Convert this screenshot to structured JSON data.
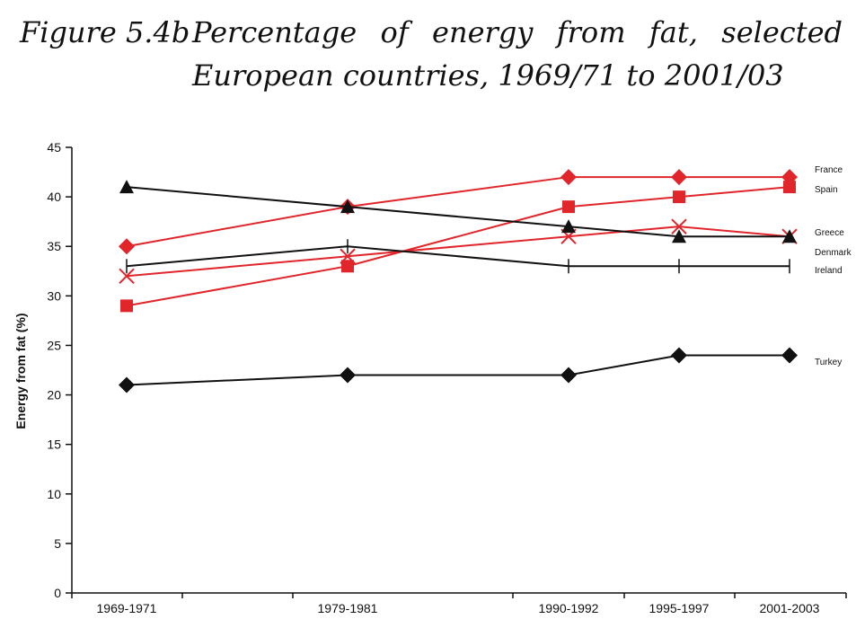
{
  "chart_data": {
    "type": "line",
    "title_prefix": "Figure 5.4b",
    "title": "Percentage of energy from fat, selected European countries, 1969/71 to 2001/03",
    "xlabel": "",
    "ylabel": "Energy from fat (%)",
    "ylim": [
      0,
      45
    ],
    "yticks": [
      0,
      5,
      10,
      15,
      20,
      25,
      30,
      35,
      40,
      45
    ],
    "categories": [
      "1969-1971",
      "1979-1981",
      "1990-1992",
      "1995-1997",
      "2001-2003"
    ],
    "grid": false,
    "legend": "right, labels at line ends",
    "series": [
      {
        "name": "France",
        "values": [
          35,
          39,
          42,
          42,
          42
        ],
        "color": "#e0262b",
        "marker": "diamond"
      },
      {
        "name": "Spain",
        "values": [
          29,
          33,
          39,
          40,
          41
        ],
        "color": "#e0262b",
        "marker": "square"
      },
      {
        "name": "Greece",
        "values": [
          32,
          34,
          36,
          37,
          36
        ],
        "color": "#e0262b",
        "marker": "x"
      },
      {
        "name": "Denmark",
        "values": [
          41,
          39,
          37,
          36,
          36
        ],
        "color": "#111111",
        "marker": "triangle"
      },
      {
        "name": "Ireland",
        "values": [
          33,
          35,
          33,
          33,
          33
        ],
        "color": "#111111",
        "marker": "plus"
      },
      {
        "name": "Turkey",
        "values": [
          21,
          22,
          22,
          24,
          24
        ],
        "color": "#111111",
        "marker": "diamond"
      }
    ]
  }
}
